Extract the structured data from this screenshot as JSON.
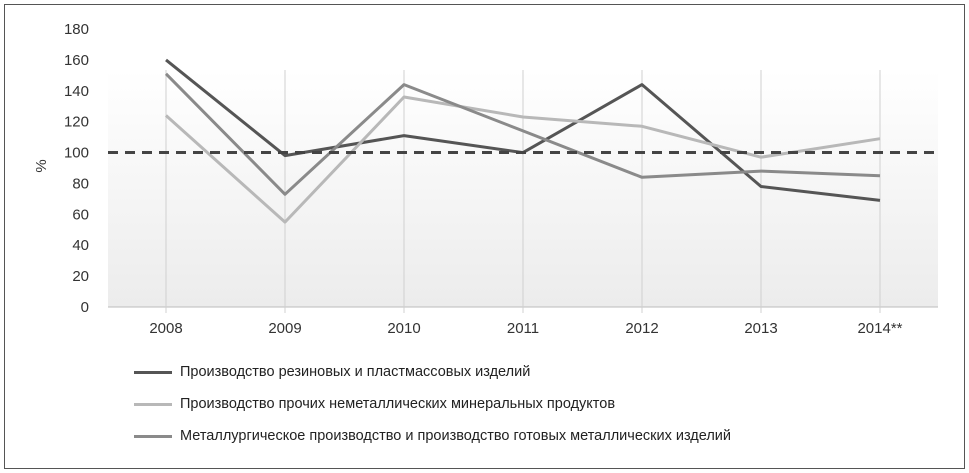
{
  "chart_data": {
    "type": "line",
    "ylabel": "%",
    "xlabel": "",
    "ylim": [
      0,
      180
    ],
    "yticks": [
      0,
      20,
      40,
      60,
      80,
      100,
      120,
      140,
      160,
      180
    ],
    "categories": [
      "2008",
      "2009",
      "2010",
      "2011",
      "2012",
      "2013",
      "2014**"
    ],
    "reference_line": {
      "value": 100,
      "style": "dashed",
      "color": "#444444"
    },
    "grid": "vertical",
    "legend_position": "bottom",
    "series": [
      {
        "name": "Производство резиновых и пластмассовых изделий",
        "color": "#555555",
        "values": [
          160,
          98,
          111,
          100,
          144,
          78,
          69
        ]
      },
      {
        "name": "Производство прочих неметаллических минеральных продуктов",
        "color": "#b8b8b8",
        "values": [
          124,
          55,
          136,
          123,
          117,
          97,
          109
        ]
      },
      {
        "name": "Металлургическое производство и производство готовых металлических изделий",
        "color": "#8a8a8a",
        "values": [
          151,
          73,
          144,
          114,
          84,
          88,
          85
        ]
      }
    ]
  }
}
